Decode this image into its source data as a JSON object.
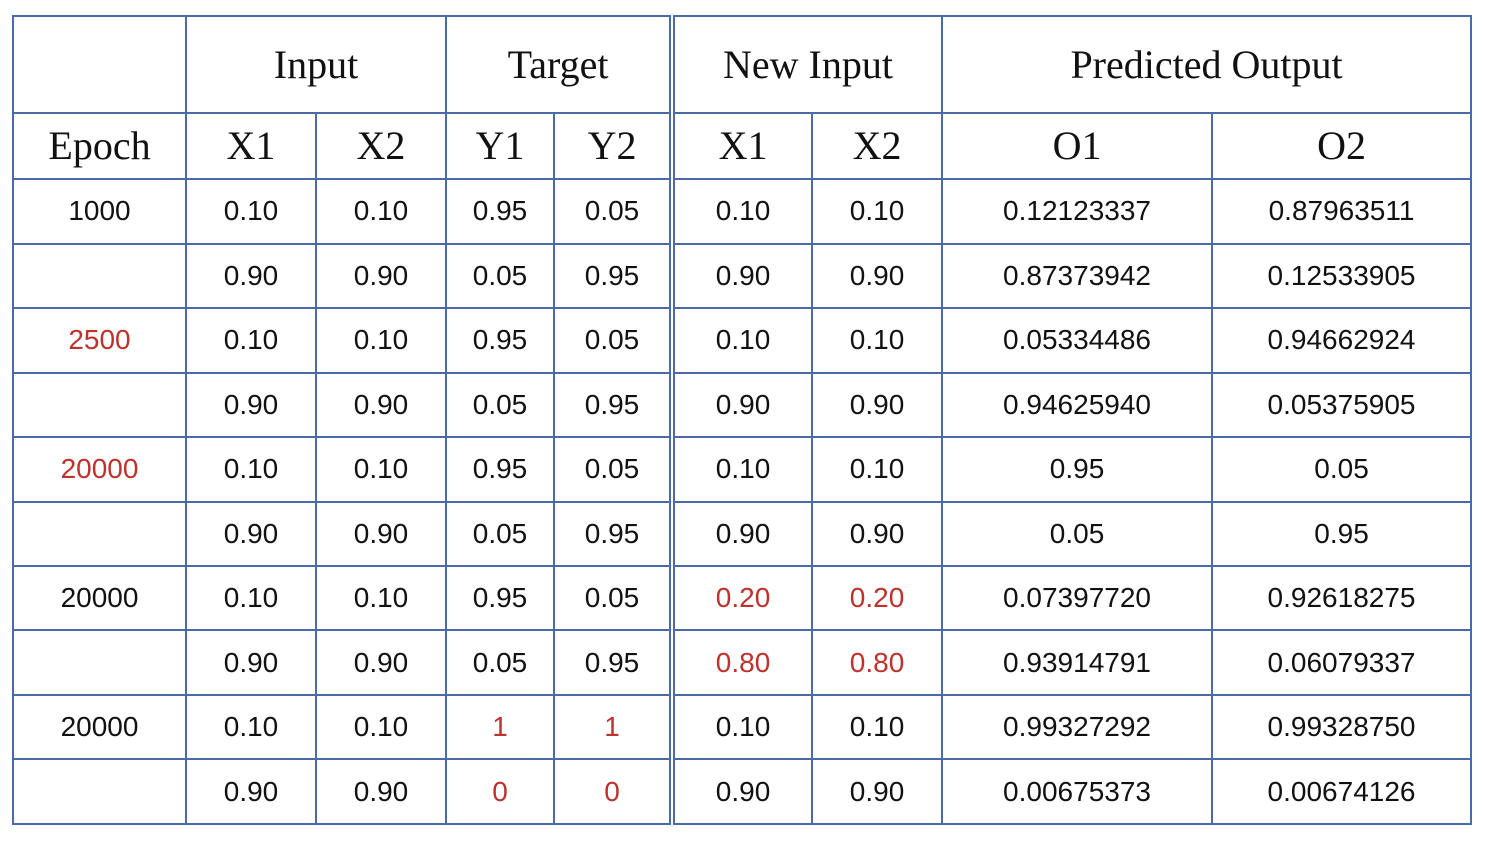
{
  "header": {
    "group1": "Input",
    "group2": "Target",
    "group3": "New Input",
    "group4": "Predicted Output",
    "sub": [
      "Epoch",
      "X1",
      "X2",
      "Y1",
      "Y2",
      "X1",
      "X2",
      "O1",
      "O2"
    ]
  },
  "rows": [
    {
      "epoch": "1000",
      "x1": "0.10",
      "x2": "0.10",
      "y1": "0.95",
      "y2": "0.05",
      "nx1": "0.10",
      "nx2": "0.10",
      "o1": "0.12123337",
      "o2": "0.87963511"
    },
    {
      "epoch": "",
      "x1": "0.90",
      "x2": "0.90",
      "y1": "0.05",
      "y2": "0.95",
      "nx1": "0.90",
      "nx2": "0.90",
      "o1": "0.87373942",
      "o2": "0.12533905"
    },
    {
      "epoch": "2500",
      "x1": "0.10",
      "x2": "0.10",
      "y1": "0.95",
      "y2": "0.05",
      "nx1": "0.10",
      "nx2": "0.10",
      "o1": "0.05334486",
      "o2": "0.94662924"
    },
    {
      "epoch": "",
      "x1": "0.90",
      "x2": "0.90",
      "y1": "0.05",
      "y2": "0.95",
      "nx1": "0.90",
      "nx2": "0.90",
      "o1": "0.94625940",
      "o2": "0.05375905"
    },
    {
      "epoch": "20000",
      "x1": "0.10",
      "x2": "0.10",
      "y1": "0.95",
      "y2": "0.05",
      "nx1": "0.10",
      "nx2": "0.10",
      "o1": "0.95",
      "o2": "0.05"
    },
    {
      "epoch": "",
      "x1": "0.90",
      "x2": "0.90",
      "y1": "0.05",
      "y2": "0.95",
      "nx1": "0.90",
      "nx2": "0.90",
      "o1": "0.05",
      "o2": "0.95"
    },
    {
      "epoch": "20000",
      "x1": "0.10",
      "x2": "0.10",
      "y1": "0.95",
      "y2": "0.05",
      "nx1": "0.20",
      "nx2": "0.20",
      "o1": "0.07397720",
      "o2": "0.92618275"
    },
    {
      "epoch": "",
      "x1": "0.90",
      "x2": "0.90",
      "y1": "0.05",
      "y2": "0.95",
      "nx1": "0.80",
      "nx2": "0.80",
      "o1": "0.93914791",
      "o2": "0.06079337"
    },
    {
      "epoch": "20000",
      "x1": "0.10",
      "x2": "0.10",
      "y1": "1",
      "y2": "1",
      "nx1": "0.10",
      "nx2": "0.10",
      "o1": "0.99327292",
      "o2": "0.99328750"
    },
    {
      "epoch": "",
      "x1": "0.90",
      "x2": "0.90",
      "y1": "0",
      "y2": "0",
      "nx1": "0.90",
      "nx2": "0.90",
      "o1": "0.00675373",
      "o2": "0.00674126"
    }
  ],
  "colors": {
    "grid": "#4a6aa9",
    "highlight": "#c0312c",
    "text": "#111111"
  }
}
